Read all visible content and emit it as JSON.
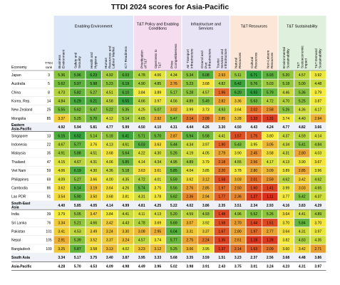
{
  "chart_data": {
    "type": "table",
    "title": "TTDI 2024 scores for Asia-Pacific",
    "header_economy": "Economy",
    "header_rank": "TTDI rank",
    "groups": [
      {
        "label": "Enabling Environment",
        "span": 5,
        "color": "#dbe6f7"
      },
      {
        "label": "T&T Policy and Enabling Conditions",
        "span": 3,
        "color": "#f5dcef"
      },
      {
        "label": "Infrastructure and Services",
        "span": 3,
        "color": "#e8e3f5"
      },
      {
        "label": "T&T Resources",
        "span": 3,
        "color": "#fbe6d7"
      },
      {
        "label": "T&T Sustainability",
        "span": 3,
        "color": "#dff0dc"
      }
    ],
    "columns": [
      "Business Environment",
      "Safety and Security",
      "Health and Hygiene",
      "Human Resources and Labour Market",
      "ICT Readiness",
      "Prioritization of T&T",
      "Openness to T&T",
      "Price Competitiveness",
      "Air Transport Infrastructure",
      "Ground and Port Infrastructure",
      "Tourist Services and Infrastructure",
      "Natural Resources",
      "Cultural Resources",
      "Non-Leisure Resources",
      "Environmental Sustainability",
      "T&T Socioeconomic Impact",
      "T&T Demand Sustainability"
    ],
    "rows": [
      {
        "economy": "Japan",
        "rank": "3",
        "kind": "country",
        "values": [
          5.36,
          5.96,
          6.23,
          4.92,
          6.03,
          4.78,
          4.06,
          4.34,
          5.34,
          6.08,
          2.93,
          5.11,
          6.71,
          5.93,
          5.2,
          4.57,
          3.92
        ]
      },
      {
        "economy": "Australia",
        "rank": "5",
        "kind": "country",
        "values": [
          5.62,
          5.97,
          5.98,
          5.23,
          6.19,
          4.9,
          4.85,
          2.76,
          5.23,
          3.68,
          4.82,
          6.42,
          5.76,
          5.03,
          5.18,
          5.0,
          4.48
        ]
      },
      {
        "economy": "China",
        "rank": "8",
        "kind": "country",
        "values": [
          4.73,
          5.82,
          5.27,
          4.51,
          6.1,
          3.84,
          3.89,
          5.17,
          5.28,
          4.57,
          1.96,
          6.2,
          6.93,
          5.79,
          4.46,
          5.36,
          3.79
        ]
      },
      {
        "economy": "Korea, Rep.",
        "rank": "14",
        "kind": "country",
        "values": [
          4.84,
          6.29,
          6.21,
          4.58,
          6.55,
          4.66,
          3.97,
          4.56,
          4.89,
          5.49,
          2.82,
          3.36,
          5.63,
          4.72,
          4.7,
          5.25,
          3.87
        ]
      },
      {
        "economy": "New Zealand",
        "rank": "25",
        "kind": "country",
        "values": [
          5.55,
          5.62,
          5.47,
          5.22,
          5.35,
          4.25,
          5.07,
          3.02,
          3.99,
          3.73,
          4.93,
          3.64,
          2.02,
          2.58,
          5.26,
          4.36,
          4.17
        ]
      },
      {
        "economy": "Mongolia",
        "rank": "85",
        "kind": "country",
        "values": [
          3.37,
          5.25,
          5.7,
          4.12,
          5.14,
          4.65,
          2.92,
          5.47,
          2.14,
          2.09,
          2.85,
          3.28,
          1.33,
          1.31,
          3.74,
          4.4,
          2.94
        ]
      },
      {
        "economy": "Eastern Asia-Pacific",
        "rank": "",
        "kind": "region",
        "values": [
          4.92,
          5.94,
          5.81,
          4.77,
          5.99,
          4.5,
          4.1,
          4.31,
          4.44,
          4.26,
          3.3,
          4.5,
          4.43,
          4.24,
          4.77,
          4.82,
          3.66
        ]
      },
      {
        "economy": "Singapore",
        "rank": "13",
        "kind": "country",
        "values": [
          6.15,
          6.52,
          5.14,
          5.18,
          6.41,
          5.71,
          5.7,
          2.87,
          5.94,
          5.58,
          4.41,
          1.57,
          1.75,
          3.8,
          4.37,
          4.59,
          4.14
        ]
      },
      {
        "economy": "Indonesia",
        "rank": "22",
        "kind": "country",
        "values": [
          4.67,
          5.77,
          3.76,
          4.13,
          4.61,
          6.03,
          3.63,
          5.44,
          4.34,
          3.97,
          1.9,
          5.43,
          3.95,
          3.05,
          4.34,
          5.41,
          4.84
        ]
      },
      {
        "economy": "Malaysia",
        "rank": "35",
        "kind": "country",
        "values": [
          4.91,
          5.88,
          4.51,
          3.68,
          5.64,
          4.22,
          4.3,
          5.26,
          4.19,
          4.05,
          2.79,
          3.9,
          2.45,
          3.58,
          4.31,
          2.8,
          4.03
        ]
      },
      {
        "economy": "Thailand",
        "rank": "47",
        "kind": "country",
        "values": [
          4.15,
          4.67,
          4.31,
          4.06,
          5.85,
          4.14,
          4.34,
          4.95,
          4.89,
          3.79,
          2.18,
          4.55,
          2.56,
          4.17,
          4.13,
          3.9,
          3.67
        ]
      },
      {
        "economy": "Viet Nam",
        "rank": "59",
        "kind": "country",
        "values": [
          4.06,
          6.19,
          4.3,
          4.36,
          5.18,
          3.63,
          3.61,
          5.85,
          4.04,
          3.85,
          2.2,
          3.78,
          2.8,
          3.09,
          3.89,
          2.85,
          3.96
        ]
      },
      {
        "economy": "Philippines",
        "rank": "69",
        "kind": "country",
        "values": [
          4.09,
          5.27,
          3.66,
          4.0,
          4.35,
          4.72,
          4.01,
          5.59,
          3.62,
          3.12,
          1.58,
          3.03,
          2.01,
          2.59,
          4.62,
          3.42,
          4.62
        ]
      },
      {
        "economy": "Cambodia",
        "rank": "86",
        "kind": "country",
        "values": [
          3.62,
          6.14,
          3.19,
          3.64,
          4.26,
          5.74,
          3.75,
          5.56,
          2.76,
          2.85,
          1.97,
          2.5,
          1.6,
          1.41,
          3.99,
          3.03,
          4.65
        ]
      },
      {
        "economy": "Lao PDR",
        "rank": "91",
        "kind": "country",
        "values": [
          3.54,
          5.9,
          3.5,
          3.68,
          3.81,
          4.31,
          3.78,
          5.62,
          2.36,
          2.94,
          1.77,
          2.36,
          1.27,
          1.11,
          3.77,
          5.42,
          4.37
        ]
      },
      {
        "economy": "South-East Asia",
        "rank": "",
        "kind": "region",
        "values": [
          4.4,
          5.85,
          4.05,
          4.14,
          4.99,
          4.81,
          4.25,
          5.22,
          4.02,
          3.86,
          2.35,
          3.51,
          2.34,
          2.93,
          4.16,
          3.83,
          4.29
        ]
      },
      {
        "economy": "India",
        "rank": "39",
        "kind": "country",
        "values": [
          3.79,
          5.05,
          3.47,
          3.84,
          4.41,
          4.11,
          4.13,
          5.2,
          4.59,
          4.93,
          1.48,
          4.96,
          5.52,
          5.26,
          3.64,
          4.41,
          4.89
        ]
      },
      {
        "economy": "Sri Lanka",
        "rank": "76",
        "kind": "country",
        "values": [
          3.34,
          5.21,
          4.66,
          3.42,
          4.43,
          4.78,
          3.69,
          5.69,
          3.07,
          3.92,
          1.58,
          2.7,
          1.44,
          1.51,
          3.7,
          5.84,
          3.7
        ]
      },
      {
        "economy": "Pakistan",
        "rank": "101",
        "kind": "country",
        "values": [
          3.41,
          4.53,
          3.49,
          3.24,
          3.3,
          3.08,
          2.95,
          6.04,
          3.31,
          3.37,
          1.67,
          2.8,
          1.97,
          2.77,
          3.64,
          4.31,
          3.97
        ]
      },
      {
        "economy": "Nepal",
        "rank": "105",
        "kind": "country",
        "values": [
          2.91,
          5.39,
          3.52,
          3.37,
          3.24,
          4.57,
          3.74,
          5.77,
          2.75,
          2.24,
          1.35,
          2.61,
          1.18,
          1.28,
          3.82,
          4.83,
          4.35
        ]
      },
      {
        "economy": "Bangladesh",
        "rank": "109",
        "kind": "country",
        "values": [
          3.25,
          5.87,
          3.58,
          3.13,
          4.02,
          3.23,
          3.12,
          5.25,
          3.06,
          3.95,
          1.37,
          2.14,
          1.63,
          2.09,
          3.6,
          3.42,
          2.71
        ]
      },
      {
        "economy": "South Asia",
        "rank": "",
        "kind": "region",
        "values": [
          3.34,
          5.17,
          3.75,
          3.4,
          3.87,
          3.95,
          3.33,
          5.68,
          3.35,
          3.59,
          1.51,
          3.23,
          2.37,
          2.56,
          3.68,
          4.48,
          3.86
        ]
      },
      {
        "economy": "Asia-Pacific",
        "rank": "",
        "kind": "total",
        "values": [
          4.28,
          5.7,
          4.53,
          4.09,
          4.98,
          4.49,
          3.96,
          5.02,
          3.98,
          3.91,
          2.43,
          3.75,
          3.01,
          3.24,
          4.23,
          4.31,
          3.97
        ]
      }
    ],
    "color_scale": {
      "low": "#d7261b",
      "mid": "#f5ec3c",
      "high": "#2ea03b",
      "min": 1.0,
      "max": 6.6
    }
  }
}
